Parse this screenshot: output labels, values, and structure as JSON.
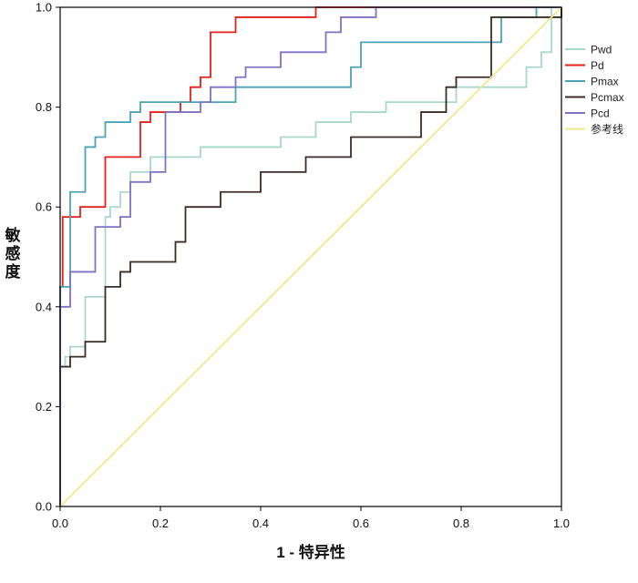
{
  "chart_data": {
    "type": "line",
    "xlabel": "1 - 特异性",
    "ylabel": "敏感度",
    "xlim": [
      0,
      1
    ],
    "ylim": [
      0,
      1
    ],
    "xticks": [
      "0.0",
      "0.2",
      "0.4",
      "0.6",
      "0.8",
      "1.0"
    ],
    "yticks": [
      "0.0",
      "0.2",
      "0.4",
      "0.6",
      "0.8",
      "1.0"
    ],
    "grid": false,
    "legend_position": "right",
    "series": [
      {
        "name": "Pwd",
        "color": "#a7d8c8",
        "points": [
          [
            0,
            0
          ],
          [
            0,
            0.28
          ],
          [
            0.01,
            0.28
          ],
          [
            0.01,
            0.3
          ],
          [
            0.02,
            0.3
          ],
          [
            0.02,
            0.32
          ],
          [
            0.05,
            0.32
          ],
          [
            0.05,
            0.42
          ],
          [
            0.09,
            0.42
          ],
          [
            0.09,
            0.58
          ],
          [
            0.1,
            0.58
          ],
          [
            0.1,
            0.6
          ],
          [
            0.12,
            0.6
          ],
          [
            0.12,
            0.63
          ],
          [
            0.14,
            0.63
          ],
          [
            0.14,
            0.67
          ],
          [
            0.18,
            0.67
          ],
          [
            0.18,
            0.7
          ],
          [
            0.28,
            0.7
          ],
          [
            0.28,
            0.72
          ],
          [
            0.44,
            0.72
          ],
          [
            0.44,
            0.74
          ],
          [
            0.51,
            0.74
          ],
          [
            0.51,
            0.77
          ],
          [
            0.58,
            0.77
          ],
          [
            0.58,
            0.79
          ],
          [
            0.65,
            0.79
          ],
          [
            0.65,
            0.81
          ],
          [
            0.79,
            0.81
          ],
          [
            0.79,
            0.84
          ],
          [
            0.93,
            0.84
          ],
          [
            0.93,
            0.88
          ],
          [
            0.96,
            0.88
          ],
          [
            0.96,
            0.91
          ],
          [
            0.98,
            0.91
          ],
          [
            0.98,
            1.0
          ],
          [
            1.0,
            1.0
          ]
        ]
      },
      {
        "name": "Pd",
        "color": "#e3201b",
        "points": [
          [
            0,
            0
          ],
          [
            0,
            0.44
          ],
          [
            0.005,
            0.44
          ],
          [
            0.005,
            0.58
          ],
          [
            0.04,
            0.58
          ],
          [
            0.04,
            0.6
          ],
          [
            0.09,
            0.6
          ],
          [
            0.09,
            0.7
          ],
          [
            0.16,
            0.7
          ],
          [
            0.16,
            0.77
          ],
          [
            0.18,
            0.77
          ],
          [
            0.18,
            0.79
          ],
          [
            0.24,
            0.79
          ],
          [
            0.24,
            0.81
          ],
          [
            0.26,
            0.81
          ],
          [
            0.26,
            0.84
          ],
          [
            0.28,
            0.84
          ],
          [
            0.28,
            0.86
          ],
          [
            0.3,
            0.86
          ],
          [
            0.3,
            0.95
          ],
          [
            0.35,
            0.95
          ],
          [
            0.35,
            0.98
          ],
          [
            0.51,
            0.98
          ],
          [
            0.51,
            1.0
          ],
          [
            1.0,
            1.0
          ]
        ]
      },
      {
        "name": "Pmax",
        "color": "#4ba3b6",
        "points": [
          [
            0,
            0
          ],
          [
            0,
            0.44
          ],
          [
            0.02,
            0.44
          ],
          [
            0.02,
            0.63
          ],
          [
            0.05,
            0.63
          ],
          [
            0.05,
            0.72
          ],
          [
            0.07,
            0.72
          ],
          [
            0.07,
            0.74
          ],
          [
            0.09,
            0.74
          ],
          [
            0.09,
            0.77
          ],
          [
            0.14,
            0.77
          ],
          [
            0.14,
            0.79
          ],
          [
            0.16,
            0.79
          ],
          [
            0.16,
            0.81
          ],
          [
            0.35,
            0.81
          ],
          [
            0.35,
            0.84
          ],
          [
            0.58,
            0.84
          ],
          [
            0.58,
            0.88
          ],
          [
            0.6,
            0.88
          ],
          [
            0.6,
            0.93
          ],
          [
            0.88,
            0.93
          ],
          [
            0.88,
            0.98
          ],
          [
            0.95,
            0.98
          ],
          [
            0.95,
            1.0
          ],
          [
            1.0,
            1.0
          ]
        ]
      },
      {
        "name": "Pcmax",
        "color": "#3d2b26",
        "points": [
          [
            0,
            0
          ],
          [
            0,
            0.28
          ],
          [
            0.02,
            0.28
          ],
          [
            0.02,
            0.3
          ],
          [
            0.05,
            0.3
          ],
          [
            0.05,
            0.33
          ],
          [
            0.09,
            0.33
          ],
          [
            0.09,
            0.44
          ],
          [
            0.12,
            0.44
          ],
          [
            0.12,
            0.47
          ],
          [
            0.14,
            0.47
          ],
          [
            0.14,
            0.49
          ],
          [
            0.23,
            0.49
          ],
          [
            0.23,
            0.53
          ],
          [
            0.25,
            0.53
          ],
          [
            0.25,
            0.6
          ],
          [
            0.32,
            0.6
          ],
          [
            0.32,
            0.63
          ],
          [
            0.4,
            0.63
          ],
          [
            0.4,
            0.67
          ],
          [
            0.49,
            0.67
          ],
          [
            0.49,
            0.7
          ],
          [
            0.58,
            0.7
          ],
          [
            0.58,
            0.74
          ],
          [
            0.72,
            0.74
          ],
          [
            0.72,
            0.79
          ],
          [
            0.77,
            0.79
          ],
          [
            0.77,
            0.84
          ],
          [
            0.79,
            0.84
          ],
          [
            0.79,
            0.86
          ],
          [
            0.86,
            0.86
          ],
          [
            0.86,
            0.98
          ],
          [
            1.0,
            0.98
          ],
          [
            1.0,
            1.0
          ]
        ]
      },
      {
        "name": "Pcd",
        "color": "#7d72c4",
        "points": [
          [
            0,
            0
          ],
          [
            0,
            0.4
          ],
          [
            0.02,
            0.4
          ],
          [
            0.02,
            0.47
          ],
          [
            0.07,
            0.47
          ],
          [
            0.07,
            0.56
          ],
          [
            0.12,
            0.56
          ],
          [
            0.12,
            0.58
          ],
          [
            0.14,
            0.58
          ],
          [
            0.14,
            0.65
          ],
          [
            0.18,
            0.65
          ],
          [
            0.18,
            0.67
          ],
          [
            0.21,
            0.67
          ],
          [
            0.21,
            0.79
          ],
          [
            0.28,
            0.79
          ],
          [
            0.28,
            0.81
          ],
          [
            0.3,
            0.81
          ],
          [
            0.3,
            0.84
          ],
          [
            0.35,
            0.84
          ],
          [
            0.35,
            0.86
          ],
          [
            0.37,
            0.86
          ],
          [
            0.37,
            0.88
          ],
          [
            0.44,
            0.88
          ],
          [
            0.44,
            0.91
          ],
          [
            0.53,
            0.91
          ],
          [
            0.53,
            0.95
          ],
          [
            0.56,
            0.95
          ],
          [
            0.56,
            0.98
          ],
          [
            0.63,
            0.98
          ],
          [
            0.63,
            1.0
          ],
          [
            1.0,
            1.0
          ]
        ]
      },
      {
        "name": "参考线",
        "color": "#f2e88a",
        "points": [
          [
            0,
            0
          ],
          [
            1,
            1
          ]
        ]
      }
    ]
  }
}
